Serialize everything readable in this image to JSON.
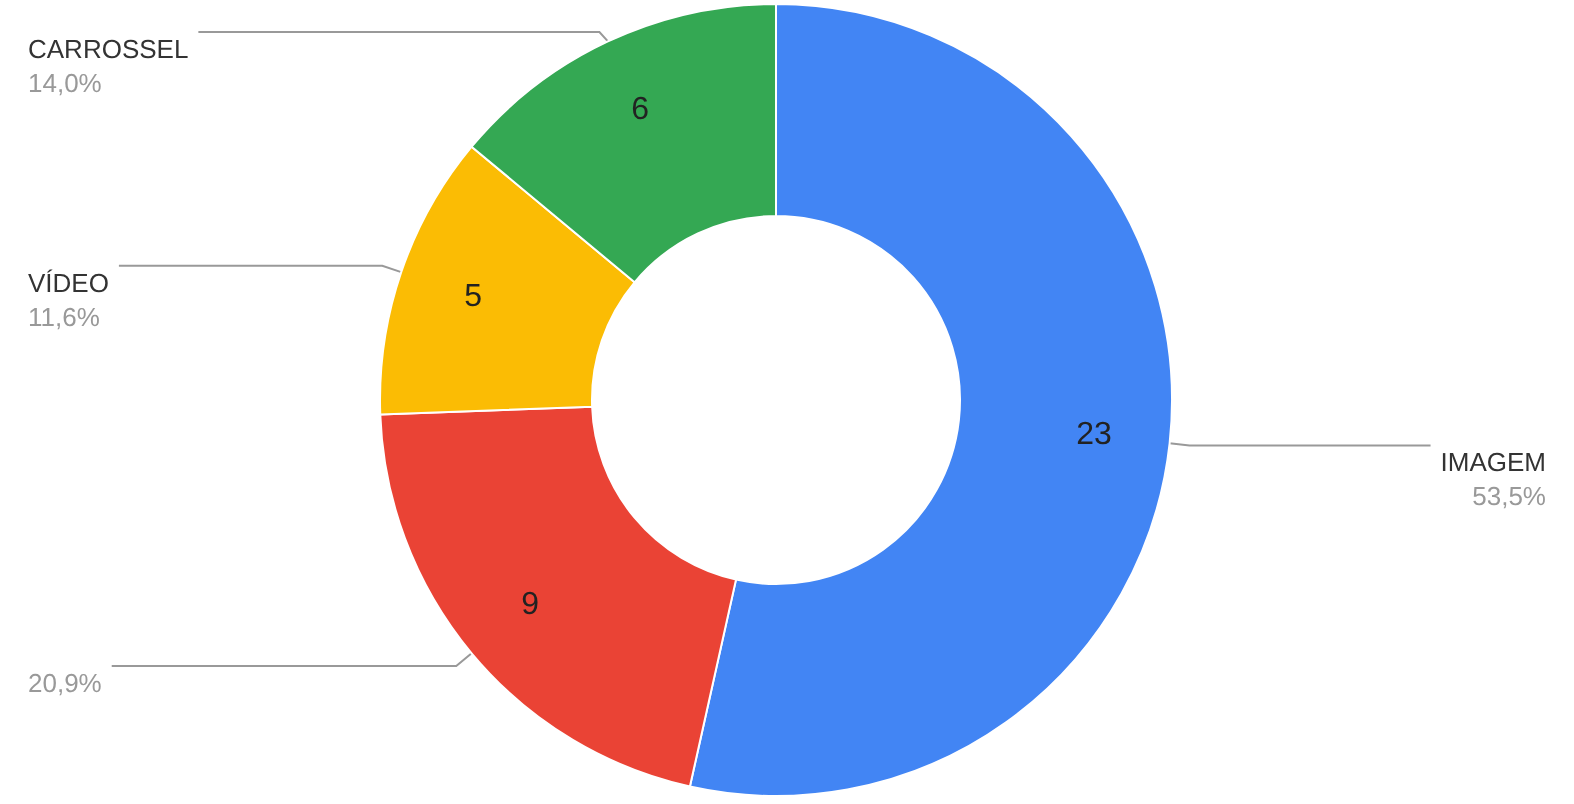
{
  "chart_data": {
    "type": "donut",
    "categories": [
      "IMAGEM",
      null,
      "VÍDEO",
      "CARROSSEL"
    ],
    "values": [
      23,
      9,
      5,
      6
    ],
    "colors": [
      "#4285f4",
      "#ea4335",
      "#fbbc04",
      "#34a853"
    ],
    "annotations": [
      "53,5%",
      "20,9%",
      "11,6%",
      "14,0%"
    ],
    "data_labels": true,
    "legend": false
  }
}
